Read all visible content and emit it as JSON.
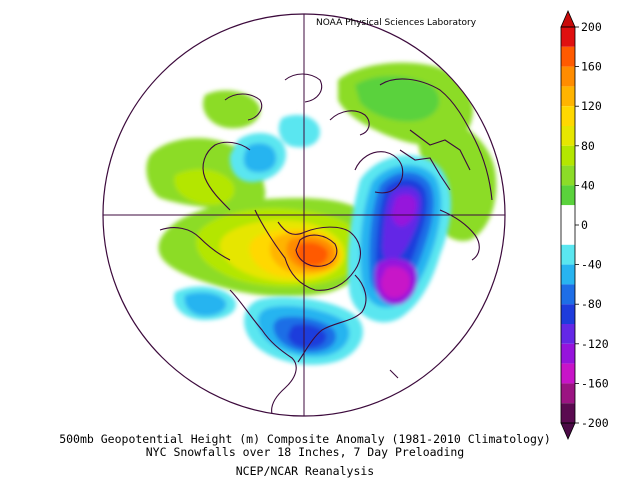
{
  "header": {
    "credit": "NOAA Physical Sciences Laboratory"
  },
  "captions": {
    "line1": "500mb Geopotential Height (m) Composite Anomaly (1981-2010 Climatology)",
    "line2": "NYC Snowfalls over 18 Inches, 7 Day Preloading",
    "line3": "NCEP/NCAR Reanalysis"
  },
  "projection": "polar-stereographic, North Pole centered",
  "colorbar": {
    "labels": [
      "200",
      "160",
      "120",
      "80",
      "40",
      "0",
      "-40",
      "-80",
      "-120",
      "-160",
      "-200"
    ],
    "bins": [
      {
        "from": 180,
        "to": 200,
        "color": "#e01010"
      },
      {
        "from": 160,
        "to": 180,
        "color": "#ff5a00"
      },
      {
        "from": 140,
        "to": 160,
        "color": "#ff8c00"
      },
      {
        "from": 120,
        "to": 140,
        "color": "#ffb400"
      },
      {
        "from": 100,
        "to": 120,
        "color": "#ffd800"
      },
      {
        "from": 80,
        "to": 100,
        "color": "#e6e600"
      },
      {
        "from": 60,
        "to": 80,
        "color": "#b4e600"
      },
      {
        "from": 40,
        "to": 60,
        "color": "#8cdc28"
      },
      {
        "from": 20,
        "to": 40,
        "color": "#5ad23c"
      },
      {
        "from": 0,
        "to": 20,
        "color": "#ffffff"
      },
      {
        "from": -20,
        "to": 0,
        "color": "#ffffff"
      },
      {
        "from": -40,
        "to": -20,
        "color": "#5ae6f0"
      },
      {
        "from": -60,
        "to": -40,
        "color": "#28b4f0"
      },
      {
        "from": -80,
        "to": -60,
        "color": "#1e6ee6"
      },
      {
        "from": -100,
        "to": -80,
        "color": "#1e3cdc"
      },
      {
        "from": -120,
        "to": -100,
        "color": "#6428e6"
      },
      {
        "from": -140,
        "to": -120,
        "color": "#9614dc"
      },
      {
        "from": -160,
        "to": -140,
        "color": "#c814c8"
      },
      {
        "from": -180,
        "to": -160,
        "color": "#9b1482"
      },
      {
        "from": -200,
        "to": -180,
        "color": "#5a0a50"
      }
    ],
    "top_arrow_color": "#c80a0a",
    "bottom_arrow_color": "#4b0a46"
  },
  "colors": {
    "map_lines": "#3c0a3c",
    "background": "#ffffff"
  }
}
